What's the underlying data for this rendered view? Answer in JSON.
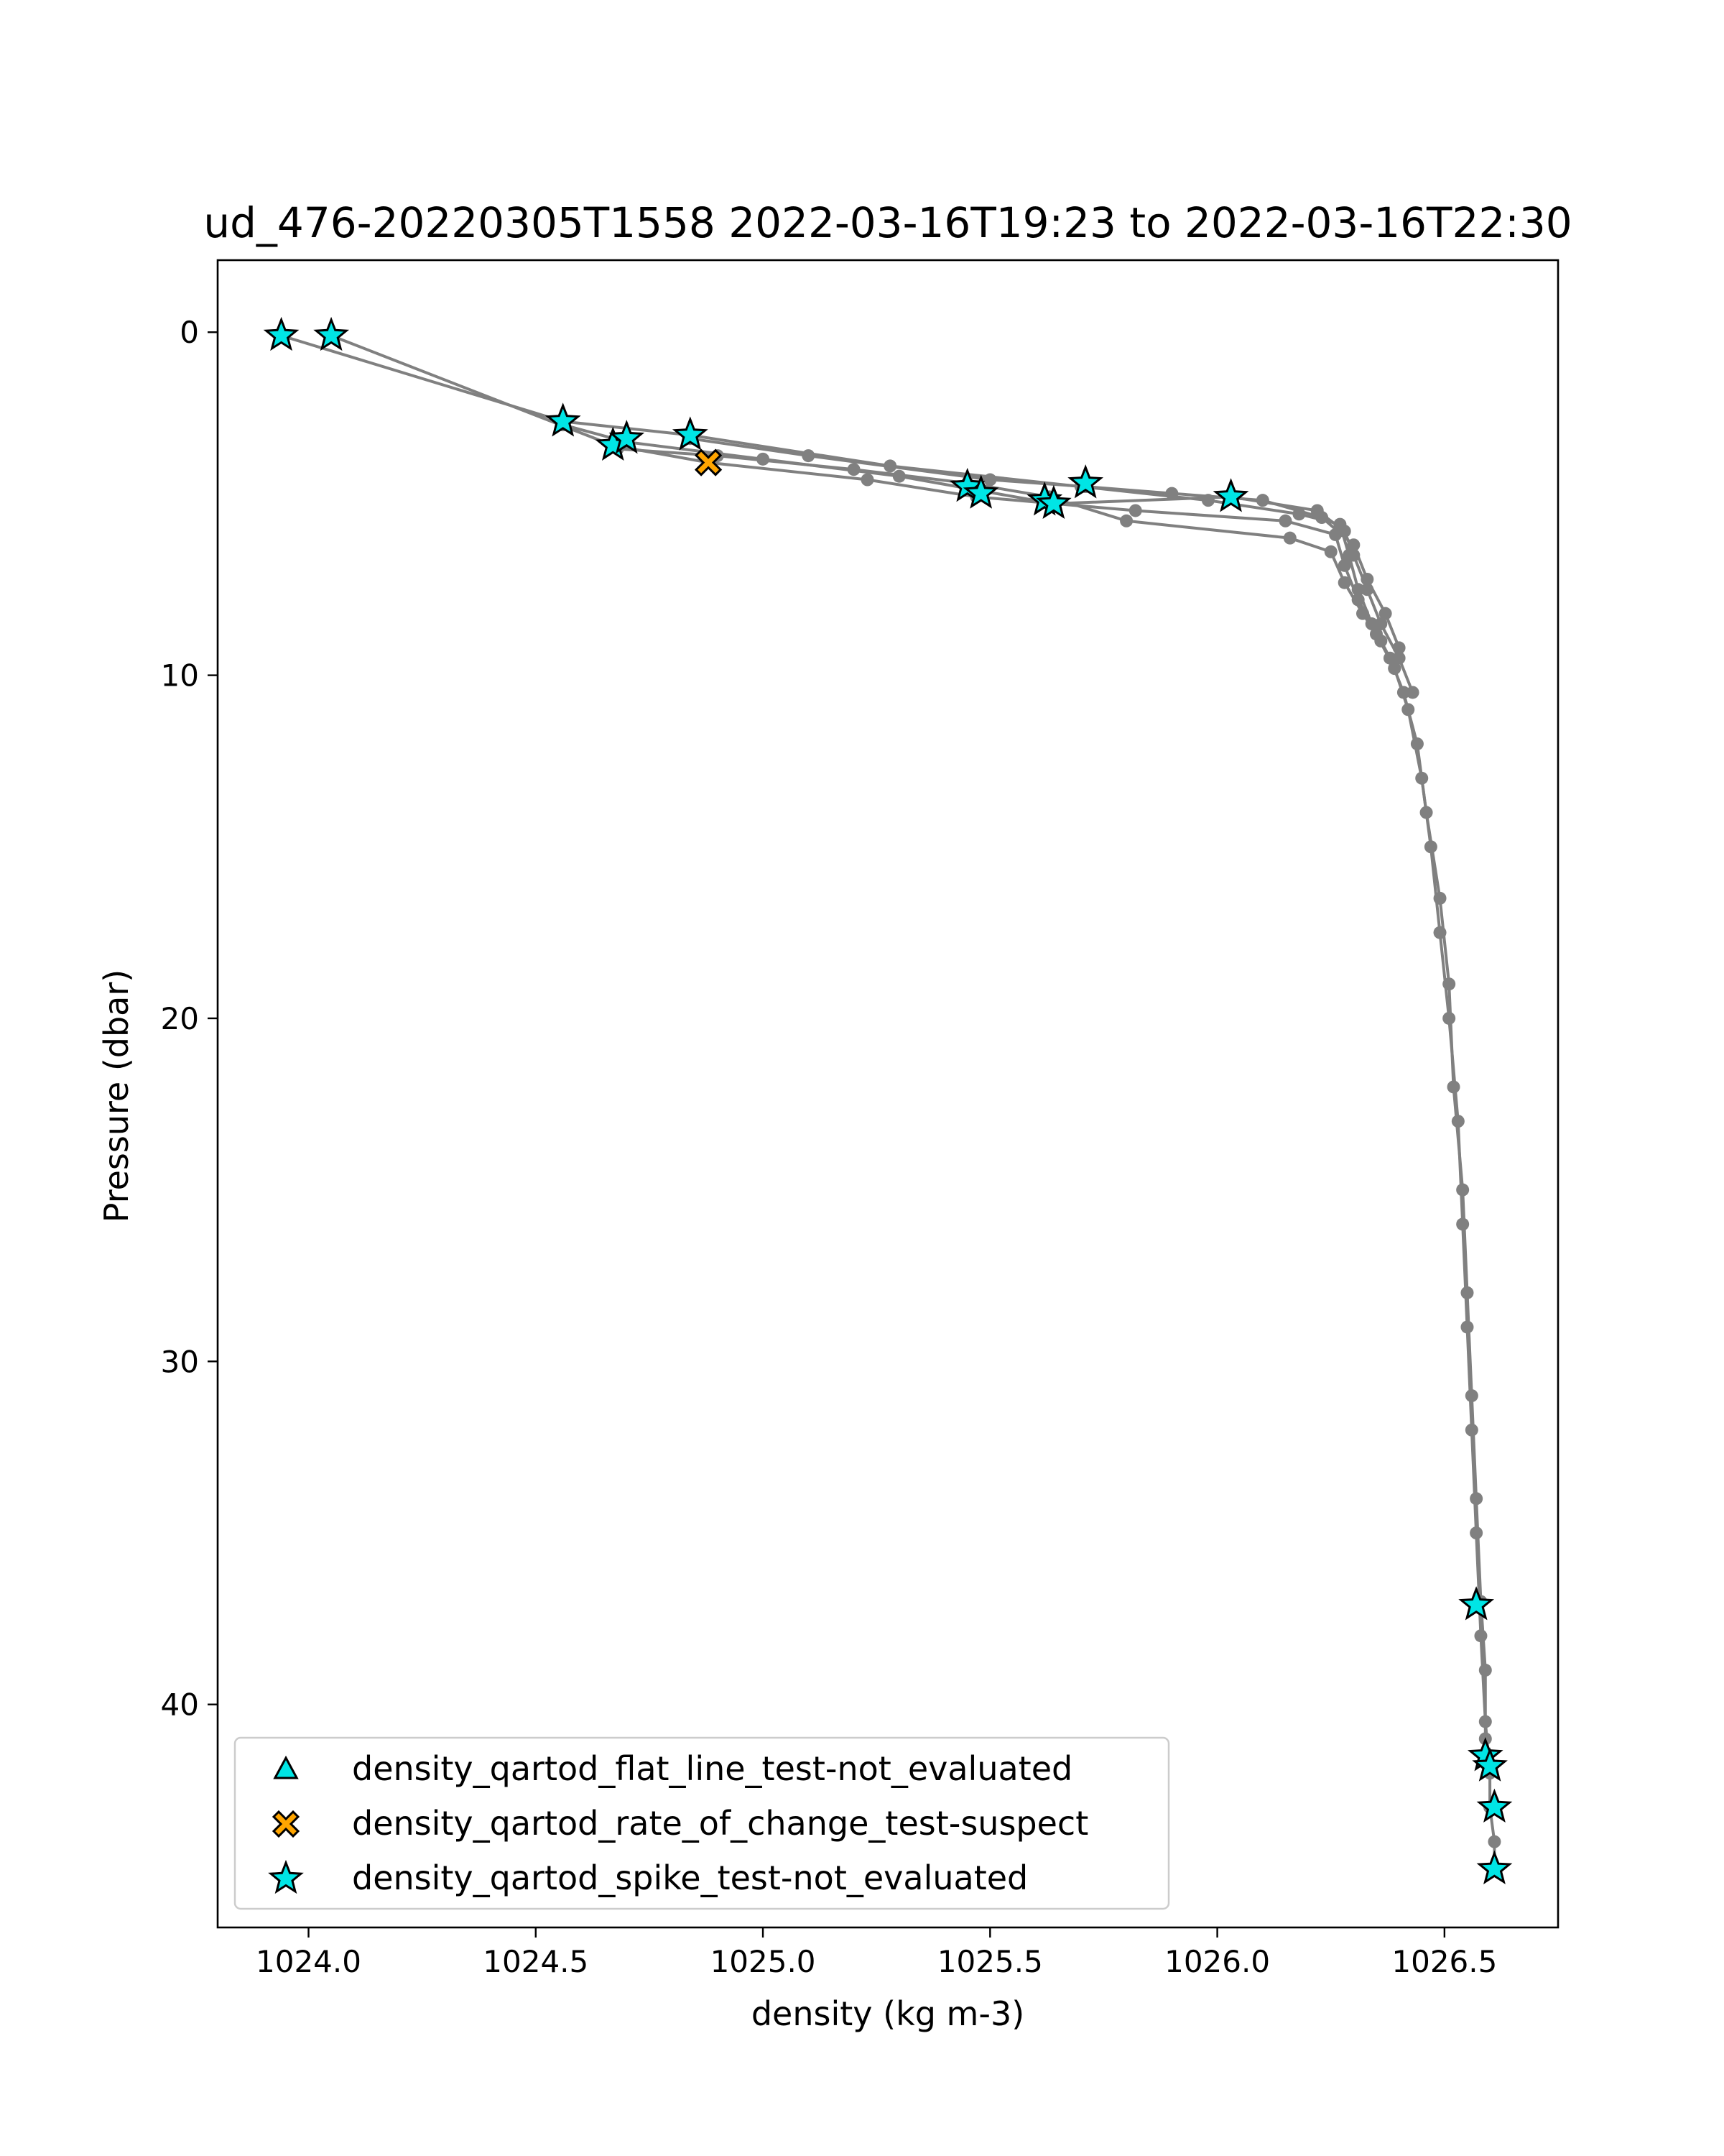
{
  "chart_data": {
    "type": "scatter",
    "title": "ud_476-20220305T1558 2022-03-16T19:23 to 2022-03-16T22:30",
    "xlabel": "density (kg m-3)",
    "ylabel": "Pressure (dbar)",
    "xlim": [
      1023.8,
      1026.75
    ],
    "ylim": [
      46.5,
      -2.1
    ],
    "y_inverted": true,
    "grid": false,
    "legend_position": "lower-left",
    "x_ticks": [
      {
        "value": 1024.0,
        "label": "1024.0"
      },
      {
        "value": 1024.5,
        "label": "1024.5"
      },
      {
        "value": 1025.0,
        "label": "1025.0"
      },
      {
        "value": 1025.5,
        "label": "1025.5"
      },
      {
        "value": 1026.0,
        "label": "1026.0"
      },
      {
        "value": 1026.5,
        "label": "1026.5"
      }
    ],
    "y_ticks": [
      {
        "value": 0,
        "label": "0"
      },
      {
        "value": 10,
        "label": "10"
      },
      {
        "value": 20,
        "label": "20"
      },
      {
        "value": 30,
        "label": "30"
      },
      {
        "value": 40,
        "label": "40"
      }
    ],
    "profile_color": "#808080",
    "profiles": [
      {
        "x": [
          1023.94,
          1024.56,
          1024.84,
          1025.28,
          1025.7,
          1025.98,
          1026.18,
          1026.27,
          1026.29,
          1026.31,
          1026.34,
          1026.38,
          1026.41,
          1026.44,
          1026.46,
          1026.49,
          1026.51,
          1026.52,
          1026.54,
          1026.55,
          1026.56,
          1026.57,
          1026.58,
          1026.59,
          1026.59,
          1026.6,
          1026.6,
          1026.61,
          1026.61
        ],
        "y": [
          0.1,
          2.6,
          3.0,
          3.9,
          4.5,
          4.9,
          5.3,
          5.6,
          6.5,
          7.5,
          8.5,
          9.5,
          10.5,
          12.0,
          14.0,
          16.5,
          19.0,
          22.0,
          25.0,
          28.0,
          31.0,
          34.0,
          37.0,
          39.0,
          41.0,
          41.8,
          43.0,
          44.0,
          44.8
        ]
      },
      {
        "x": [
          1024.05,
          1024.67,
          1024.88,
          1025.23,
          1025.47,
          1025.82,
          1026.15,
          1026.26,
          1026.28,
          1026.31,
          1026.35,
          1026.39,
          1026.42,
          1026.45,
          1026.47,
          1026.49,
          1026.51,
          1026.53,
          1026.54,
          1026.55,
          1026.56,
          1026.57,
          1026.58,
          1026.59,
          1026.6
        ],
        "y": [
          0.1,
          3.3,
          3.8,
          4.3,
          4.8,
          5.2,
          5.5,
          5.9,
          6.8,
          7.8,
          8.8,
          9.8,
          11.0,
          13.0,
          15.0,
          17.5,
          20.0,
          23.0,
          26.0,
          29.0,
          32.0,
          35.0,
          38.0,
          40.5,
          42.0
        ]
      },
      {
        "x": [
          1024.56,
          1024.7,
          1025.0,
          1025.3,
          1025.64,
          1026.03,
          1026.22,
          1026.28,
          1026.3,
          1026.33,
          1026.36,
          1026.4,
          1026.43
        ],
        "y": [
          2.7,
          3.2,
          3.7,
          4.2,
          5.0,
          4.8,
          5.2,
          5.8,
          6.5,
          7.5,
          8.5,
          9.5,
          10.5
        ]
      },
      {
        "x": [
          1024.68,
          1024.9,
          1025.2,
          1025.45,
          1025.63,
          1025.8,
          1026.16,
          1026.25,
          1026.28,
          1026.32,
          1026.36,
          1026.39
        ],
        "y": [
          3.4,
          3.6,
          4.0,
          4.4,
          4.8,
          5.5,
          6.0,
          6.4,
          7.3,
          8.2,
          9.0,
          9.8
        ]
      },
      {
        "x": [
          1024.84,
          1025.1,
          1025.5,
          1025.71,
          1025.9,
          1026.1,
          1026.23,
          1026.3,
          1026.33,
          1026.37,
          1026.4
        ],
        "y": [
          3.1,
          3.6,
          4.3,
          4.5,
          4.7,
          4.9,
          5.4,
          6.2,
          7.2,
          8.2,
          9.2
        ]
      }
    ],
    "flags": {
      "flat_line_not_evaluated": [],
      "rate_of_change_suspect": [
        {
          "x": 1024.88,
          "y": 3.8
        }
      ],
      "spike_not_evaluated": [
        {
          "x": 1023.94,
          "y": 0.1
        },
        {
          "x": 1024.05,
          "y": 0.1
        },
        {
          "x": 1024.56,
          "y": 2.6
        },
        {
          "x": 1024.67,
          "y": 3.3
        },
        {
          "x": 1024.7,
          "y": 3.1
        },
        {
          "x": 1024.84,
          "y": 3.0
        },
        {
          "x": 1025.45,
          "y": 4.5
        },
        {
          "x": 1025.48,
          "y": 4.7
        },
        {
          "x": 1025.62,
          "y": 4.9
        },
        {
          "x": 1025.64,
          "y": 5.0
        },
        {
          "x": 1025.71,
          "y": 4.4
        },
        {
          "x": 1026.03,
          "y": 4.8
        },
        {
          "x": 1026.57,
          "y": 37.1
        },
        {
          "x": 1026.59,
          "y": 41.5
        },
        {
          "x": 1026.6,
          "y": 41.8
        },
        {
          "x": 1026.61,
          "y": 43.0
        },
        {
          "x": 1026.61,
          "y": 44.8
        }
      ]
    },
    "legend": [
      {
        "label": "density_qartod_flat_line_test-not_evaluated",
        "marker": "triangle",
        "color": "#00e5e5"
      },
      {
        "label": "density_qartod_rate_of_change_test-suspect",
        "marker": "x",
        "color": "#ffa500"
      },
      {
        "label": "density_qartod_spike_test-not_evaluated",
        "marker": "star",
        "color": "#00e5e5"
      }
    ]
  }
}
